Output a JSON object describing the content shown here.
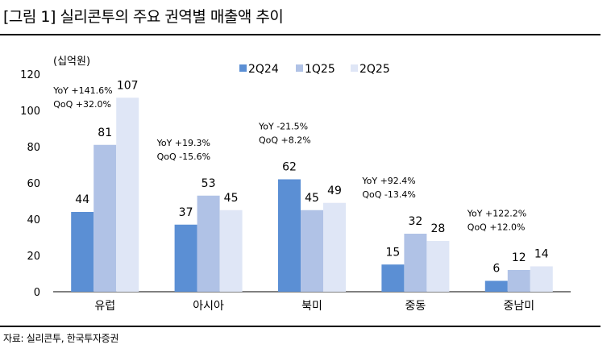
{
  "title": "[그림 1] 실리콘투의 주요 권역별 매출액 추이",
  "source": "자료: 실리콘투, 한국투자증권",
  "colors": {
    "series": [
      "#5b8fd4",
      "#b0c2e6",
      "#dfe6f6"
    ],
    "axis": "#000000"
  },
  "chart_data": {
    "type": "bar",
    "unit_label": "(십억원)",
    "categories": [
      "유럽",
      "아시아",
      "북미",
      "중동",
      "중남미"
    ],
    "series": [
      {
        "name": "2Q24",
        "values": [
          44,
          37,
          62,
          15,
          6
        ]
      },
      {
        "name": "1Q25",
        "values": [
          81,
          53,
          45,
          32,
          12
        ]
      },
      {
        "name": "2Q25",
        "values": [
          107,
          45,
          49,
          28,
          14
        ]
      }
    ],
    "ylim": [
      0,
      120
    ],
    "yticks": [
      0,
      20,
      40,
      60,
      80,
      100,
      120
    ],
    "legend_position": "top-center",
    "grid": false,
    "annotations": [
      {
        "yoy": "YoY +141.6%",
        "qoq": "QoQ +32.0%"
      },
      {
        "yoy": "YoY +19.3%",
        "qoq": "QoQ -15.6%"
      },
      {
        "yoy": "YoY -21.5%",
        "qoq": "QoQ +8.2%"
      },
      {
        "yoy": "YoY +92.4%",
        "qoq": "QoQ -13.4%"
      },
      {
        "yoy": "YoY +122.2%",
        "qoq": "QoQ +12.0%"
      }
    ]
  }
}
